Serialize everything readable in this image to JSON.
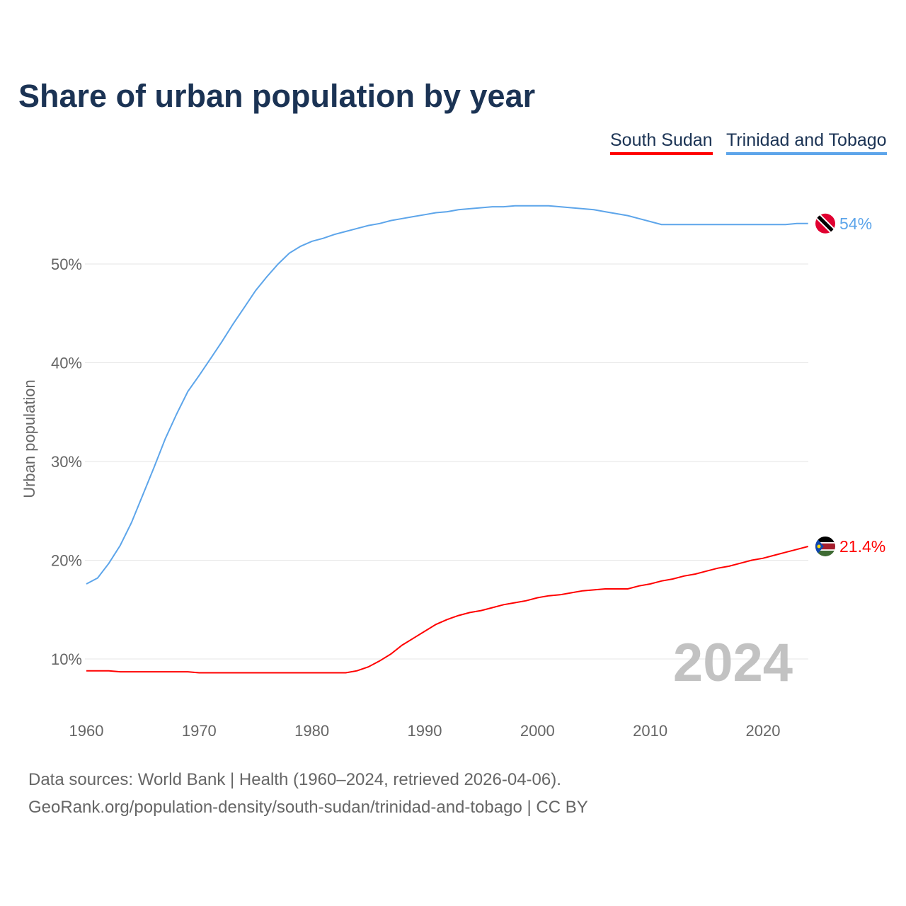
{
  "title": "Share of urban population by year",
  "footer": {
    "line1": "Data sources: World Bank | Health (1960–2024, retrieved 2026-04-06).",
    "line2": "GeoRank.org/population-density/south-sudan/trinidad-and-tobago | CC BY"
  },
  "chart_data": {
    "type": "line",
    "title": "Share of urban population by year",
    "xlabel": "",
    "ylabel": "Urban population",
    "xlim": [
      1960,
      2024
    ],
    "ylim": [
      5,
      58
    ],
    "x_ticks": [
      1960,
      1970,
      1980,
      1990,
      2000,
      2010,
      2020
    ],
    "y_ticks": [
      10,
      20,
      30,
      40,
      50
    ],
    "y_tick_labels": [
      "10%",
      "20%",
      "30%",
      "40%",
      "50%"
    ],
    "grid": true,
    "legend_position": "top-right",
    "year_watermark": "2024",
    "series": [
      {
        "name": "South Sudan",
        "color": "#ff0000",
        "end_label": "21.4%",
        "flag": "south-sudan",
        "values": [
          8.8,
          8.8,
          8.8,
          8.7,
          8.7,
          8.7,
          8.7,
          8.7,
          8.7,
          8.7,
          8.6,
          8.6,
          8.6,
          8.6,
          8.6,
          8.6,
          8.6,
          8.6,
          8.6,
          8.6,
          8.6,
          8.6,
          8.6,
          8.6,
          8.8,
          9.2,
          9.8,
          10.5,
          11.4,
          12.1,
          12.8,
          13.5,
          14.0,
          14.4,
          14.7,
          14.9,
          15.2,
          15.5,
          15.7,
          15.9,
          16.2,
          16.4,
          16.5,
          16.7,
          16.9,
          17.0,
          17.1,
          17.1,
          17.1,
          17.4,
          17.6,
          17.9,
          18.1,
          18.4,
          18.6,
          18.9,
          19.2,
          19.4,
          19.7,
          20.0,
          20.2,
          20.5,
          20.8,
          21.1,
          21.4
        ]
      },
      {
        "name": "Trinidad and Tobago",
        "color": "#5da5ea",
        "end_label": "54%",
        "flag": "trinidad-and-tobago",
        "values": [
          17.6,
          18.2,
          19.7,
          21.5,
          23.8,
          26.6,
          29.4,
          32.3,
          34.8,
          37.1,
          38.7,
          40.4,
          42.1,
          43.9,
          45.6,
          47.3,
          48.7,
          50.0,
          51.1,
          51.8,
          52.3,
          52.6,
          53.0,
          53.3,
          53.6,
          53.9,
          54.1,
          54.4,
          54.6,
          54.8,
          55.0,
          55.2,
          55.3,
          55.5,
          55.6,
          55.7,
          55.8,
          55.8,
          55.9,
          55.9,
          55.9,
          55.9,
          55.8,
          55.7,
          55.6,
          55.5,
          55.3,
          55.1,
          54.9,
          54.6,
          54.3,
          54.0,
          54.0,
          54.0,
          54.0,
          54.0,
          54.0,
          54.0,
          54.0,
          54.0,
          54.0,
          54.0,
          54.0,
          54.1,
          54.1
        ]
      }
    ]
  }
}
